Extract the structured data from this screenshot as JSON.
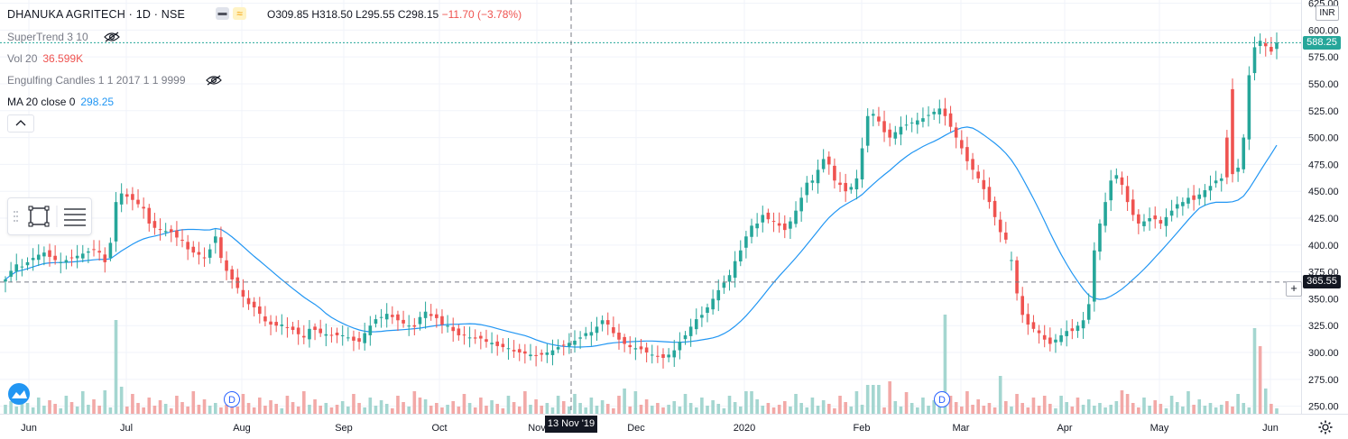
{
  "header": {
    "symbol_title": "DHANUKA AGRITECH · 1D · NSE",
    "ohlc": {
      "open": "O309.85",
      "high": "H318.50",
      "low": "L295.55",
      "close": "C298.15",
      "change": "−11.70 (−3.78%)"
    }
  },
  "legend": {
    "supertrend": "SuperTrend 3 10",
    "volume_label": "Vol 20",
    "volume_value": "36.599K",
    "engulfing": "Engulfing Candles 1 1 2017 1 1 9999",
    "ma_label": "MA 20 close 0",
    "ma_value": "298.25"
  },
  "colors": {
    "up": "#26a69a",
    "down": "#ef5350",
    "ma": "#2196f3",
    "vol_up": "#a4d6d0",
    "vol_down": "#f2a9a7",
    "accent": "#2962ff"
  },
  "icons": {
    "eye_off": "eye-slash-icon",
    "rect_tool": "rectangle-icon",
    "lines_tool": "lines-icon",
    "settings": "gear-icon",
    "logo": "cloud-logo"
  },
  "currency": "INR",
  "last_price_label": "588.25",
  "crosshair_price_label": "365.55",
  "crosshair_date_label": "13 Nov '19",
  "dividend_marker": "D",
  "chart_data": {
    "type": "candlestick",
    "x_labels": [
      "Jun",
      "Jul",
      "Aug",
      "Sep",
      "Oct",
      "Nov",
      "Dec",
      "2020",
      "Feb",
      "Mar",
      "Apr",
      "May",
      "Jun"
    ],
    "y_ticks": [
      "625.00",
      "600.00",
      "575.00",
      "550.00",
      "525.00",
      "500.00",
      "475.00",
      "450.00",
      "425.00",
      "400.00",
      "375.00",
      "350.00",
      "325.00",
      "300.00",
      "275.00",
      "250.00"
    ],
    "ylim": [
      243,
      628
    ],
    "last_price": 588.25,
    "crosshair_price": 365.55,
    "close_series": [
      368,
      376,
      382,
      380,
      384,
      388,
      391,
      393,
      389,
      386,
      384,
      386,
      388,
      390,
      392,
      394,
      396,
      393,
      384,
      402,
      440,
      448,
      445,
      442,
      438,
      434,
      420,
      416,
      414,
      413,
      412,
      407,
      404,
      396,
      393,
      391,
      388,
      396,
      408,
      388,
      376,
      368,
      360,
      352,
      345,
      342,
      336,
      329,
      326,
      325,
      326,
      323,
      321,
      317,
      314,
      322,
      321,
      318,
      317,
      316,
      316,
      316,
      314,
      311,
      310,
      318,
      325,
      331,
      333,
      336,
      333,
      330,
      327,
      325,
      324,
      333,
      338,
      334,
      332,
      326,
      325,
      320,
      316,
      316,
      314,
      313,
      313,
      310,
      309,
      306,
      305,
      304,
      301,
      300,
      299,
      298,
      297,
      298,
      300,
      302,
      305,
      307,
      309,
      311,
      314,
      318,
      319,
      324,
      330,
      326,
      318,
      312,
      308,
      305,
      304,
      303,
      300,
      298,
      296,
      295,
      298,
      302,
      310,
      316,
      324,
      331,
      335,
      342,
      350,
      358,
      365,
      372,
      385,
      395,
      408,
      418,
      420,
      428,
      424,
      422,
      418,
      414,
      422,
      432,
      444,
      458,
      460,
      470,
      480,
      475,
      460,
      456,
      450,
      454,
      462,
      490,
      520,
      522,
      515,
      505,
      500,
      505,
      510,
      512,
      514,
      516,
      518,
      521,
      524,
      527,
      520,
      510,
      500,
      490,
      478,
      470,
      462,
      452,
      440,
      426,
      412,
      405,
      386,
      355,
      335,
      326,
      322,
      318,
      312,
      308,
      312,
      316,
      320,
      320,
      325,
      330,
      345,
      395,
      420,
      440,
      460,
      465,
      456,
      440,
      428,
      420,
      422,
      425,
      424,
      420,
      426,
      432,
      438,
      440,
      444,
      442,
      447,
      451,
      455,
      460,
      462,
      463,
      466,
      472,
      500,
      558,
      584,
      590,
      585,
      580,
      588.25
    ]
  }
}
